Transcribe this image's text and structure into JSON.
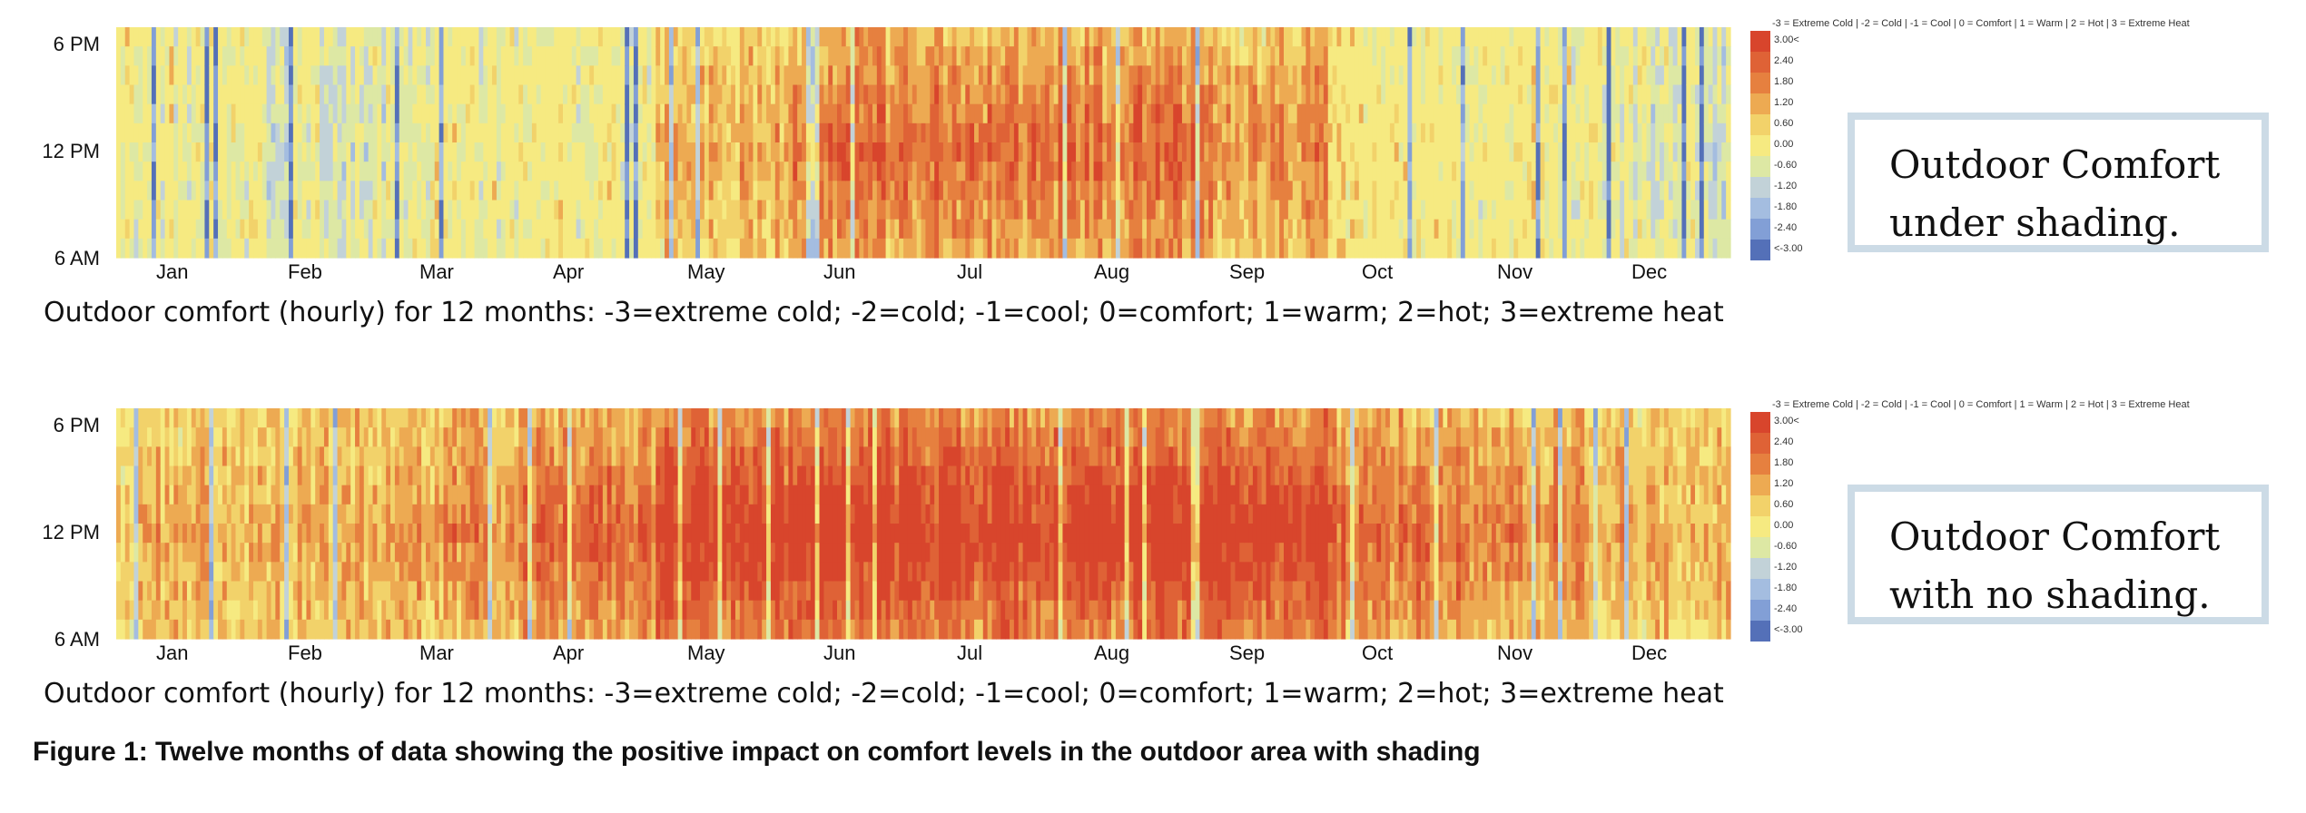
{
  "figure_caption": "Figure 1: Twelve months of data showing the positive impact on comfort levels in the outdoor area with shading",
  "legend": {
    "title": "-3 = Extreme Cold | -2 = Cold | -1 = Cool | 0 = Comfort | 1 = Warm | 2 = Hot | 3 = Extreme Heat",
    "labels": [
      "3.00<",
      "2.40",
      "1.80",
      "1.20",
      "0.60",
      "0.00",
      "-0.60",
      "-1.20",
      "-1.80",
      "-2.40",
      "<-3.00"
    ],
    "colors": [
      "#d8452c",
      "#df6236",
      "#e6803f",
      "#edaa52",
      "#f2d26a",
      "#f6ea81",
      "#dde8a4",
      "#c2d2d8",
      "#a4bde0",
      "#829fd6",
      "#5470b8"
    ]
  },
  "chart_data": [
    {
      "type": "heatmap",
      "title": "",
      "xlabel": "",
      "ylabel": "",
      "x_tick_labels": [
        "Jan",
        "Feb",
        "Mar",
        "Apr",
        "May",
        "Jun",
        "Jul",
        "Aug",
        "Sep",
        "Oct",
        "Nov",
        "Dec"
      ],
      "y_tick_labels": [
        "6 PM",
        "12 PM",
        "6 AM"
      ],
      "value_range": [
        -3,
        3
      ],
      "caption": "Outdoor comfort (hourly) for 12 months: -3=extreme cold; -2=cold; -1=cool; 0=comfort; 1=warm; 2=hot; 3=extreme heat",
      "inset_label": [
        "Outdoor Comfort",
        "under shading."
      ],
      "monthly_typical_level": [
        0,
        -0.5,
        0,
        0,
        1,
        2,
        2,
        2,
        1.5,
        0.5,
        0,
        -0.5
      ]
    },
    {
      "type": "heatmap",
      "title": "",
      "xlabel": "",
      "ylabel": "",
      "x_tick_labels": [
        "Jan",
        "Feb",
        "Mar",
        "Apr",
        "May",
        "Jun",
        "Jul",
        "Aug",
        "Sep",
        "Oct",
        "Nov",
        "Dec"
      ],
      "y_tick_labels": [
        "6 PM",
        "12 PM",
        "6 AM"
      ],
      "value_range": [
        -3,
        3
      ],
      "caption": "Outdoor comfort (hourly) for 12 months: -3=extreme cold; -2=cold; -1=cool; 0=comfort; 1=warm; 2=hot; 3=extreme heat",
      "inset_label": [
        "Outdoor Comfort",
        "with no shading."
      ],
      "monthly_typical_level": [
        1,
        1,
        1.5,
        2,
        3,
        3,
        3,
        3,
        3,
        2,
        1.5,
        1
      ]
    }
  ]
}
